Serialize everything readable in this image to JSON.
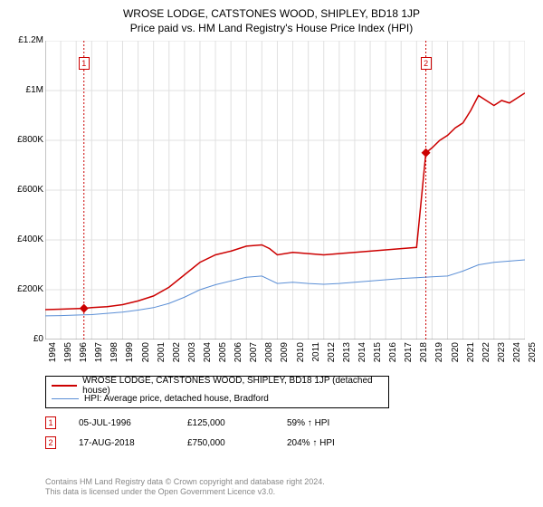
{
  "title": "WROSE LODGE, CATSTONES WOOD, SHIPLEY, BD18 1JP",
  "subtitle": "Price paid vs. HM Land Registry's House Price Index (HPI)",
  "chart": {
    "type": "line",
    "background_color": "#ffffff",
    "grid_color": "#e0e0e0",
    "x_axis": {
      "min": 1994,
      "max": 2025,
      "ticks": [
        1994,
        1995,
        1996,
        1997,
        1998,
        1999,
        2000,
        2001,
        2002,
        2003,
        2004,
        2005,
        2006,
        2007,
        2008,
        2009,
        2010,
        2011,
        2012,
        2013,
        2014,
        2015,
        2016,
        2017,
        2018,
        2019,
        2020,
        2021,
        2022,
        2023,
        2024,
        2025
      ],
      "label_fontsize": 10,
      "label_rotation": -90
    },
    "y_axis": {
      "min": 0,
      "max": 1200000,
      "ticks": [
        0,
        200000,
        400000,
        600000,
        800000,
        1000000,
        1200000
      ],
      "tick_labels": [
        "£0",
        "£200K",
        "£400K",
        "£600K",
        "£800K",
        "£1M",
        "£1.2M"
      ],
      "label_fontsize": 10
    },
    "series": [
      {
        "name": "WROSE LODGE, CATSTONES WOOD, SHIPLEY, BD18 1JP (detached house)",
        "color": "#cc0000",
        "line_width": 1.5,
        "data": [
          [
            1994,
            120000
          ],
          [
            1995,
            122000
          ],
          [
            1996,
            124000
          ],
          [
            1996.5,
            125000
          ],
          [
            1997,
            128000
          ],
          [
            1998,
            132000
          ],
          [
            1999,
            140000
          ],
          [
            2000,
            155000
          ],
          [
            2001,
            175000
          ],
          [
            2002,
            210000
          ],
          [
            2003,
            260000
          ],
          [
            2004,
            310000
          ],
          [
            2005,
            340000
          ],
          [
            2006,
            355000
          ],
          [
            2007,
            375000
          ],
          [
            2008,
            380000
          ],
          [
            2008.5,
            365000
          ],
          [
            2009,
            340000
          ],
          [
            2010,
            350000
          ],
          [
            2011,
            345000
          ],
          [
            2012,
            340000
          ],
          [
            2013,
            345000
          ],
          [
            2014,
            350000
          ],
          [
            2015,
            355000
          ],
          [
            2016,
            360000
          ],
          [
            2017,
            365000
          ],
          [
            2018,
            370000
          ],
          [
            2018.6,
            750000
          ],
          [
            2019,
            770000
          ],
          [
            2019.5,
            800000
          ],
          [
            2020,
            820000
          ],
          [
            2020.5,
            850000
          ],
          [
            2021,
            870000
          ],
          [
            2021.5,
            920000
          ],
          [
            2022,
            980000
          ],
          [
            2022.5,
            960000
          ],
          [
            2023,
            940000
          ],
          [
            2023.5,
            960000
          ],
          [
            2024,
            950000
          ],
          [
            2024.5,
            970000
          ],
          [
            2025,
            990000
          ]
        ]
      },
      {
        "name": "HPI: Average price, detached house, Bradford",
        "color": "#5b8fd6",
        "line_width": 1,
        "data": [
          [
            1994,
            95000
          ],
          [
            1995,
            96000
          ],
          [
            1996,
            98000
          ],
          [
            1997,
            100000
          ],
          [
            1998,
            105000
          ],
          [
            1999,
            110000
          ],
          [
            2000,
            118000
          ],
          [
            2001,
            128000
          ],
          [
            2002,
            145000
          ],
          [
            2003,
            170000
          ],
          [
            2004,
            200000
          ],
          [
            2005,
            220000
          ],
          [
            2006,
            235000
          ],
          [
            2007,
            250000
          ],
          [
            2008,
            255000
          ],
          [
            2009,
            225000
          ],
          [
            2010,
            230000
          ],
          [
            2011,
            225000
          ],
          [
            2012,
            222000
          ],
          [
            2013,
            225000
          ],
          [
            2014,
            230000
          ],
          [
            2015,
            235000
          ],
          [
            2016,
            240000
          ],
          [
            2017,
            245000
          ],
          [
            2018,
            248000
          ],
          [
            2019,
            252000
          ],
          [
            2020,
            255000
          ],
          [
            2021,
            275000
          ],
          [
            2022,
            300000
          ],
          [
            2023,
            310000
          ],
          [
            2024,
            315000
          ],
          [
            2025,
            320000
          ]
        ]
      }
    ],
    "markers": [
      {
        "label": "1",
        "x": 1996.5,
        "y": 125000,
        "color": "#cc0000"
      },
      {
        "label": "2",
        "x": 2018.6,
        "y": 750000,
        "color": "#cc0000"
      }
    ],
    "marker_line_color": "#cc0000",
    "marker_line_dash": "2,2",
    "marker_dot_color": "#cc0000"
  },
  "legend": {
    "items": [
      {
        "color": "#cc0000",
        "label": "WROSE LODGE, CATSTONES WOOD, SHIPLEY, BD18 1JP (detached house)",
        "width": 2
      },
      {
        "color": "#5b8fd6",
        "label": "HPI: Average price, detached house, Bradford",
        "width": 1
      }
    ]
  },
  "transactions": [
    {
      "num": "1",
      "date": "05-JUL-1996",
      "price": "£125,000",
      "delta": "59% ↑ HPI"
    },
    {
      "num": "2",
      "date": "17-AUG-2018",
      "price": "£750,000",
      "delta": "204% ↑ HPI"
    }
  ],
  "footer_line1": "Contains HM Land Registry data © Crown copyright and database right 2024.",
  "footer_line2": "This data is licensed under the Open Government Licence v3.0."
}
